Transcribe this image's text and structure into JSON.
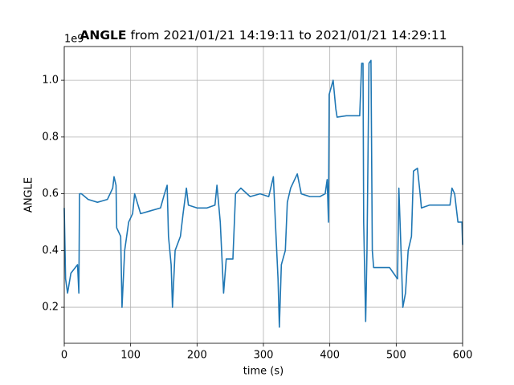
{
  "chart_data": {
    "type": "line",
    "title": {
      "bold": "ANGLE",
      "rest": "from 2021/01/21 14:19:11 to 2021/01/21 14:29:11"
    },
    "offset_label": "1e9",
    "xlabel": "time (s)",
    "ylabel": "ANGLE",
    "xlim": [
      0,
      600
    ],
    "ylim": [
      0.073,
      1.119
    ],
    "xticks": [
      0,
      100,
      200,
      300,
      400,
      500,
      600
    ],
    "yticks": [
      0.2,
      0.4,
      0.6,
      0.8,
      {
        "value": 1,
        "label": "1.0"
      }
    ],
    "grid": true,
    "series": [
      {
        "name": "ANGLE",
        "color": "#1f77b4",
        "x": [
          0,
          2,
          5,
          10,
          20,
          22,
          23,
          26,
          36,
          50,
          65,
          73,
          75,
          78,
          79,
          85,
          87,
          91,
          97,
          103,
          106,
          115,
          130,
          145,
          151,
          155,
          157,
          161,
          163,
          167,
          175,
          179,
          184,
          187,
          200,
          215,
          227,
          230,
          235,
          240,
          244,
          254,
          258,
          266,
          280,
          295,
          308,
          315,
          318,
          322,
          324,
          327,
          333,
          336,
          341,
          351,
          357,
          370,
          385,
          393,
          396,
          398,
          399,
          405,
          409,
          411,
          425,
          440,
          445,
          448,
          450,
          451,
          454,
          456,
          459,
          462,
          464,
          466,
          478,
          490,
          496,
          502,
          504,
          508,
          510,
          514,
          518,
          523,
          526,
          532,
          536,
          538,
          550,
          565,
          581,
          584,
          588,
          593,
          599,
          600
        ],
        "values": [
          0.55,
          0.3,
          0.25,
          0.32,
          0.35,
          0.25,
          0.6,
          0.6,
          0.58,
          0.57,
          0.58,
          0.62,
          0.66,
          0.63,
          0.48,
          0.45,
          0.2,
          0.4,
          0.5,
          0.53,
          0.6,
          0.53,
          0.54,
          0.55,
          0.6,
          0.63,
          0.45,
          0.35,
          0.2,
          0.4,
          0.45,
          0.53,
          0.62,
          0.56,
          0.55,
          0.55,
          0.56,
          0.63,
          0.5,
          0.25,
          0.37,
          0.37,
          0.6,
          0.62,
          0.59,
          0.6,
          0.59,
          0.66,
          0.5,
          0.3,
          0.13,
          0.35,
          0.4,
          0.57,
          0.62,
          0.67,
          0.6,
          0.59,
          0.59,
          0.6,
          0.65,
          0.5,
          0.95,
          1.0,
          0.9,
          0.87,
          0.875,
          0.875,
          0.875,
          1.06,
          1.06,
          0.5,
          0.15,
          0.4,
          1.06,
          1.07,
          0.4,
          0.34,
          0.34,
          0.34,
          0.32,
          0.3,
          0.62,
          0.35,
          0.2,
          0.25,
          0.4,
          0.45,
          0.68,
          0.69,
          0.6,
          0.55,
          0.56,
          0.56,
          0.56,
          0.62,
          0.6,
          0.5,
          0.5,
          0.42
        ]
      }
    ]
  }
}
